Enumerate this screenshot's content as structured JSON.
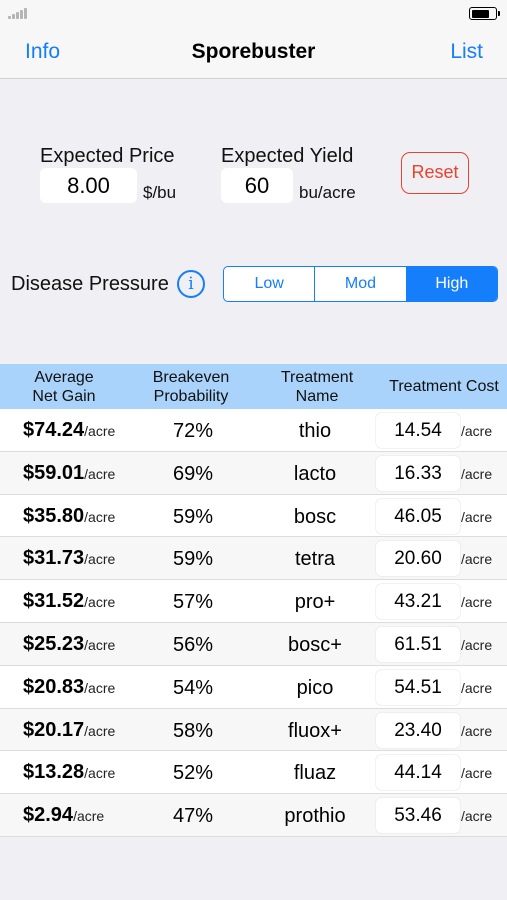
{
  "nav": {
    "left_label": "Info",
    "title": "Sporebuster",
    "right_label": "List"
  },
  "inputs": {
    "price_label": "Expected Price",
    "price_value": "8.00",
    "price_unit": "$/bu",
    "yield_label": "Expected Yield",
    "yield_value": "60",
    "yield_unit": "bu/acre",
    "reset_label": "Reset"
  },
  "pressure": {
    "label": "Disease Pressure",
    "info_glyph": "i",
    "segments": [
      "Low",
      "Mod",
      "High"
    ],
    "selected": "High"
  },
  "table": {
    "headers": {
      "gain": "Average\nNet Gain",
      "prob": "Breakeven\nProbability",
      "name": "Treatment\nName",
      "cost": "Treatment Cost"
    },
    "gain_unit": "/acre",
    "cost_unit": "/acre",
    "rows": [
      {
        "gain": "$74.24",
        "prob": "72%",
        "name": "thio",
        "cost": "14.54"
      },
      {
        "gain": "$59.01",
        "prob": "69%",
        "name": "lacto",
        "cost": "16.33"
      },
      {
        "gain": "$35.80",
        "prob": "59%",
        "name": "bosc",
        "cost": "46.05"
      },
      {
        "gain": "$31.73",
        "prob": "59%",
        "name": "tetra",
        "cost": "20.60"
      },
      {
        "gain": "$31.52",
        "prob": "57%",
        "name": "pro+",
        "cost": "43.21"
      },
      {
        "gain": "$25.23",
        "prob": "56%",
        "name": "bosc+",
        "cost": "61.51"
      },
      {
        "gain": "$20.83",
        "prob": "54%",
        "name": "pico",
        "cost": "54.51"
      },
      {
        "gain": "$20.17",
        "prob": "58%",
        "name": "fluox+",
        "cost": "23.40"
      },
      {
        "gain": "$13.28",
        "prob": "52%",
        "name": "fluaz",
        "cost": "44.14"
      },
      {
        "gain": "$2.94",
        "prob": "47%",
        "name": "prothio",
        "cost": "53.46"
      }
    ]
  },
  "status": {
    "battery_level": 0.8,
    "signal_icon": "cellular-signal-icon",
    "battery_icon": "battery-icon"
  },
  "colors": {
    "accent": "#147efb",
    "reset": "#e8432f",
    "header_bg": "#a9d3fb",
    "background": "#efeff4"
  }
}
